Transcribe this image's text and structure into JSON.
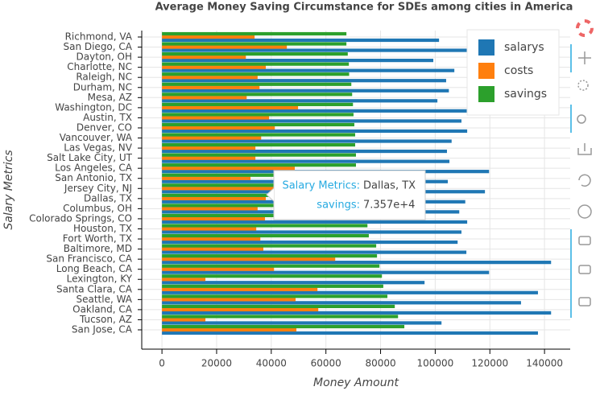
{
  "chart_data": {
    "type": "hbar",
    "title": "Average Money Saving Circumstance for SDEs among cities in America",
    "x_label": "Money Amount",
    "y_label": "Salary Metrics",
    "categories": [
      "Richmond, VA",
      "San Diego, CA",
      "Dayton, OH",
      "Charlotte, NC",
      "Raleigh, NC",
      "Durham, NC",
      "Mesa, AZ",
      "Washington, DC",
      "Austin, TX",
      "Denver, CO",
      "Vancouver, WA",
      "Las Vegas, NV",
      "Salt Lake City, UT",
      "Los Angeles, CA",
      "San Antonio, TX",
      "Jersey City, NJ",
      "Dallas, TX",
      "Columbus, OH",
      "Colorado Springs, CO",
      "Houston, TX",
      "Fort Worth, TX",
      "Baltimore, MD",
      "San Francisco, CA",
      "Long Beach, CA",
      "Lexington, KY",
      "Santa Clara, CA",
      "Seattle, WA",
      "Oakland, CA",
      "Tucson, AZ",
      "San Jose, CA"
    ],
    "series": [
      {
        "name": "salarys",
        "color": "#1f77b4",
        "values": [
          101400,
          113000,
          99300,
          107000,
          104000,
          105000,
          100800,
          115000,
          109600,
          111700,
          106000,
          104300,
          105200,
          119700,
          104600,
          118200,
          111000,
          108800,
          111700,
          109600,
          108200,
          111400,
          142400,
          119700,
          96100,
          137600,
          131400,
          142400,
          102300,
          137600
        ]
      },
      {
        "name": "costs",
        "color": "#ff7f0e",
        "values": [
          33900,
          45700,
          30700,
          38000,
          35000,
          35700,
          31000,
          49800,
          39200,
          41300,
          36300,
          34200,
          34200,
          48600,
          32400,
          46900,
          38000,
          35000,
          37700,
          34500,
          36000,
          37100,
          63400,
          41000,
          15900,
          56900,
          48900,
          57200,
          15900,
          49200
        ]
      },
      {
        "name": "savings",
        "color": "#2ca02c",
        "values": [
          67500,
          67500,
          68000,
          68400,
          68500,
          69300,
          69600,
          69900,
          70100,
          70400,
          70700,
          70700,
          71000,
          71000,
          71300,
          71600,
          73570,
          72000,
          72200,
          75200,
          75700,
          78400,
          78700,
          79600,
          80500,
          81000,
          82500,
          85200,
          86400,
          88700
        ]
      }
    ],
    "xlim": [
      -7400,
      149400
    ],
    "xticks": [
      0,
      20000,
      40000,
      60000,
      80000,
      100000,
      120000,
      140000
    ],
    "grid": true,
    "legend": "top-right",
    "tooltip": {
      "rows": [
        {
          "label": "Salary Metrics:",
          "value": "Dallas, TX"
        },
        {
          "label": "savings:",
          "value": "7.357e+4"
        }
      ]
    }
  }
}
